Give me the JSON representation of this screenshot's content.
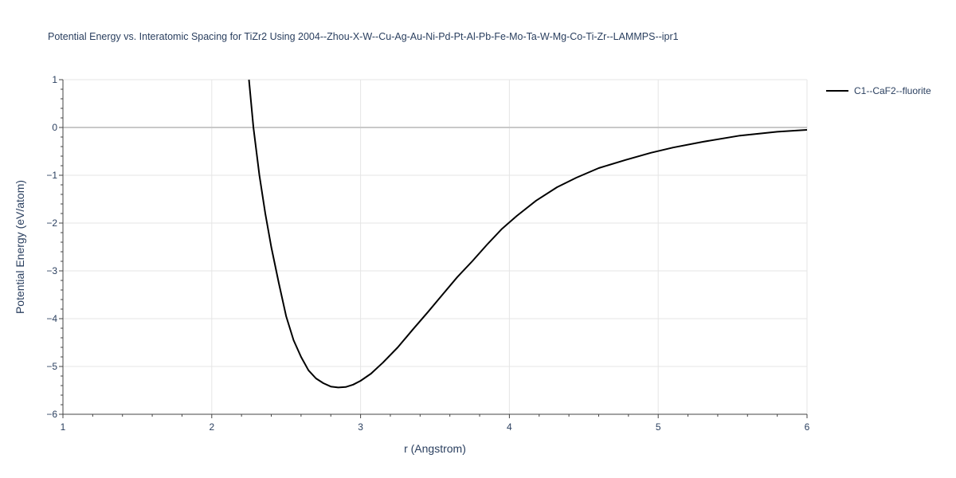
{
  "chart_data": {
    "type": "line",
    "title": "Potential Energy vs. Interatomic Spacing for TiZr2 Using 2004--Zhou-X-W--Cu-Ag-Au-Ni-Pd-Pt-Al-Pb-Fe-Mo-Ta-W-Mg-Co-Ti-Zr--LAMMPS--ipr1",
    "xlabel": "r (Angstrom)",
    "ylabel": "Potential Energy (eV/atom)",
    "xlim": [
      1,
      6
    ],
    "ylim": [
      -6,
      1
    ],
    "xticks": [
      1,
      2,
      3,
      4,
      5,
      6
    ],
    "xtick_labels": [
      "1",
      "2",
      "3",
      "4",
      "5",
      "6"
    ],
    "yticks": [
      1,
      0,
      -1,
      -2,
      -3,
      -4,
      -5,
      -6
    ],
    "ytick_labels": [
      "1",
      "0",
      "−1",
      "−2",
      "−3",
      "−4",
      "−5",
      "−6"
    ],
    "grid": true,
    "legend_position": "top-right",
    "series": [
      {
        "name": "C1--CaF2--fluorite",
        "color": "#000000",
        "x": [
          2.25,
          2.28,
          2.32,
          2.36,
          2.4,
          2.45,
          2.5,
          2.55,
          2.6,
          2.65,
          2.7,
          2.75,
          2.8,
          2.85,
          2.9,
          2.95,
          3.0,
          3.07,
          3.15,
          3.25,
          3.35,
          3.45,
          3.55,
          3.65,
          3.75,
          3.85,
          3.95,
          4.05,
          4.18,
          4.32,
          4.45,
          4.6,
          4.78,
          4.95,
          5.1,
          5.3,
          5.55,
          5.8,
          6.0
        ],
        "y": [
          1.0,
          0.0,
          -1.0,
          -1.8,
          -2.5,
          -3.25,
          -3.95,
          -4.45,
          -4.8,
          -5.08,
          -5.25,
          -5.35,
          -5.42,
          -5.44,
          -5.43,
          -5.38,
          -5.3,
          -5.15,
          -4.92,
          -4.6,
          -4.23,
          -3.87,
          -3.5,
          -3.13,
          -2.8,
          -2.45,
          -2.12,
          -1.85,
          -1.53,
          -1.25,
          -1.05,
          -0.85,
          -0.68,
          -0.53,
          -0.42,
          -0.3,
          -0.17,
          -0.09,
          -0.05
        ]
      }
    ]
  }
}
